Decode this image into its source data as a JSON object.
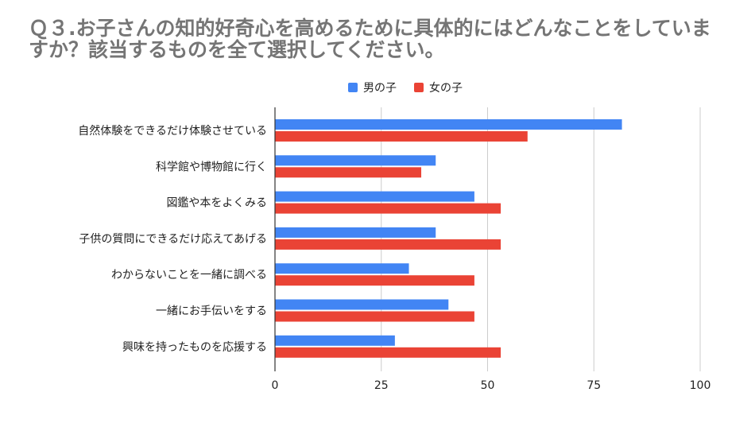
{
  "chart_data": {
    "type": "bar",
    "orientation": "horizontal",
    "title": "Ｑ３.お子さんの知的好奇心を高めるために具体的にはどんなことをしていますか？該当するものを全て選択してください。",
    "categories": [
      "自然体験をできるだけ体験させている",
      "科学館や博物館に行く",
      "図鑑や本をよくみる",
      "子供の質問にできるだけ応えてあげる",
      "わからないことを一緒に調べる",
      "一緒にお手伝いをする",
      "興味を持ったものを応援する"
    ],
    "series": [
      {
        "name": "男の子",
        "color": "#4285f4",
        "values": [
          81.6,
          37.8,
          46.9,
          37.8,
          31.5,
          40.8,
          28.2
        ]
      },
      {
        "name": "女の子",
        "color": "#ea4335",
        "values": [
          59.4,
          34.4,
          53.1,
          53.1,
          46.9,
          46.9,
          53.1
        ]
      }
    ],
    "xlim": [
      0,
      100
    ],
    "xticks": [
      "0",
      "25",
      "50",
      "75",
      "100"
    ],
    "xlabel": "",
    "ylabel": "",
    "grid": "vertical",
    "legend_position": "top"
  }
}
